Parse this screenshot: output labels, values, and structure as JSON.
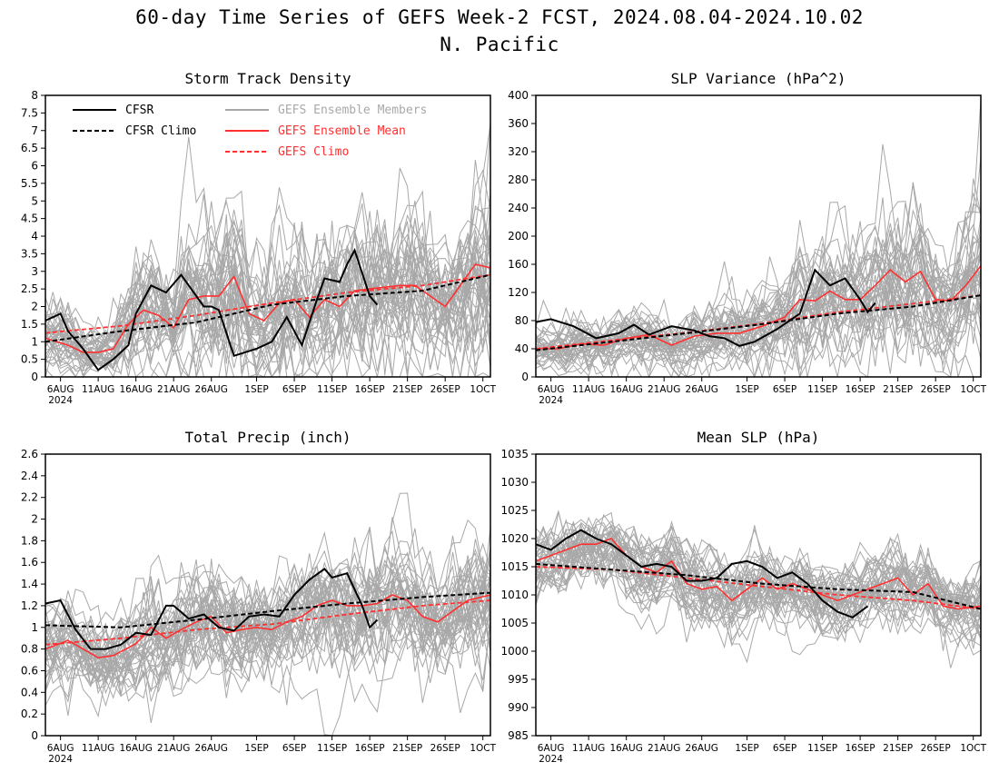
{
  "title": {
    "line1": "60-day Time Series of GEFS Week-2 FCST, 2024.08.04-2024.10.02",
    "line2": "N. Pacific"
  },
  "colors": {
    "cfsr": "#000000",
    "cfsr_climo": "#000000",
    "members": "#a8a8a8",
    "ens_mean": "#ff3030",
    "gefs_climo": "#ff3030"
  },
  "legend": {
    "cfsr": "CFSR",
    "cfsr_climo": "CFSR Climo",
    "members": "GEFS Ensemble Members",
    "ens_mean": "GEFS Ensemble Mean",
    "gefs_climo": "GEFS Climo"
  },
  "x_ticks": [
    "6AUG",
    "11AUG",
    "16AUG",
    "21AUG",
    "26AUG",
    "1SEP",
    "6SEP",
    "11SEP",
    "16SEP",
    "21SEP",
    "26SEP",
    "1OCT"
  ],
  "x_year": "2024",
  "chart_data": [
    {
      "type": "line",
      "title": "Storm Track Density",
      "x_start": "2024-08-04",
      "x_end": "2024-10-02",
      "ylim": [
        0,
        8
      ],
      "yticks": [
        0,
        0.5,
        1,
        1.5,
        2,
        2.5,
        3,
        3.5,
        4,
        4.5,
        5,
        5.5,
        6,
        6.5,
        7,
        7.5,
        8
      ],
      "ensemble_band": [
        0.2,
        1.6
      ],
      "series": [
        {
          "name": "CFSR",
          "x": [
            "2024-08-04",
            "2024-08-06",
            "2024-08-07",
            "2024-08-09",
            "2024-08-11",
            "2024-08-13",
            "2024-08-15",
            "2024-08-16",
            "2024-08-18",
            "2024-08-20",
            "2024-08-22",
            "2024-08-23",
            "2024-08-25",
            "2024-08-26",
            "2024-08-27",
            "2024-08-29",
            "2024-09-01",
            "2024-09-03",
            "2024-09-05",
            "2024-09-07",
            "2024-09-09",
            "2024-09-10",
            "2024-09-12",
            "2024-09-13",
            "2024-09-14",
            "2024-09-16",
            "2024-09-17"
          ],
          "y": [
            1.6,
            1.8,
            1.3,
            0.8,
            0.2,
            0.5,
            0.9,
            1.8,
            2.6,
            2.4,
            2.9,
            2.6,
            2.0,
            2.0,
            1.9,
            0.6,
            0.8,
            1.0,
            1.7,
            0.9,
            2.2,
            2.8,
            2.7,
            3.2,
            3.6,
            2.3,
            2.05
          ]
        },
        {
          "name": "CFSR Climo",
          "x": [
            "2024-08-04",
            "2024-08-14",
            "2024-08-24",
            "2024-09-03",
            "2024-09-13",
            "2024-09-23",
            "2024-10-02"
          ],
          "y": [
            1.0,
            1.3,
            1.55,
            2.05,
            2.3,
            2.45,
            2.9
          ]
        },
        {
          "name": "GEFS Ensemble Mean",
          "x": [
            "2024-08-04",
            "2024-08-07",
            "2024-08-09",
            "2024-08-11",
            "2024-08-13",
            "2024-08-15",
            "2024-08-17",
            "2024-08-19",
            "2024-08-21",
            "2024-08-23",
            "2024-08-25",
            "2024-08-27",
            "2024-08-29",
            "2024-08-31",
            "2024-09-02",
            "2024-09-04",
            "2024-09-06",
            "2024-09-08",
            "2024-09-10",
            "2024-09-12",
            "2024-09-14",
            "2024-09-16",
            "2024-09-18",
            "2024-09-20",
            "2024-09-22",
            "2024-09-24",
            "2024-09-26",
            "2024-09-28",
            "2024-09-30",
            "2024-10-02"
          ],
          "y": [
            1.1,
            0.9,
            0.7,
            0.7,
            0.8,
            1.5,
            1.9,
            1.75,
            1.4,
            2.2,
            2.3,
            2.3,
            2.85,
            1.8,
            1.6,
            2.1,
            2.2,
            1.7,
            2.2,
            2.0,
            2.45,
            2.5,
            2.55,
            2.6,
            2.6,
            2.3,
            2.0,
            2.6,
            3.2,
            3.1
          ]
        },
        {
          "name": "GEFS Climo",
          "x": [
            "2024-08-04",
            "2024-08-14",
            "2024-08-24",
            "2024-09-03",
            "2024-09-13",
            "2024-09-23",
            "2024-10-02"
          ],
          "y": [
            1.25,
            1.45,
            1.75,
            2.1,
            2.4,
            2.6,
            2.9
          ]
        }
      ]
    },
    {
      "type": "line",
      "title": "SLP Variance (hPa^2)",
      "x_start": "2024-08-04",
      "x_end": "2024-10-02",
      "ylim": [
        0,
        400
      ],
      "yticks": [
        0,
        40,
        80,
        120,
        160,
        200,
        240,
        280,
        320,
        360,
        400
      ],
      "ensemble_band": [
        0.25,
        1.3
      ],
      "series": [
        {
          "name": "CFSR",
          "x": [
            "2024-08-04",
            "2024-08-06",
            "2024-08-09",
            "2024-08-12",
            "2024-08-15",
            "2024-08-17",
            "2024-08-19",
            "2024-08-22",
            "2024-08-25",
            "2024-08-27",
            "2024-08-29",
            "2024-08-31",
            "2024-09-02",
            "2024-09-05",
            "2024-09-08",
            "2024-09-10",
            "2024-09-12",
            "2024-09-14",
            "2024-09-16",
            "2024-09-17",
            "2024-09-18"
          ],
          "y": [
            78,
            82,
            72,
            55,
            62,
            74,
            60,
            72,
            66,
            58,
            55,
            44,
            50,
            68,
            90,
            152,
            130,
            140,
            110,
            92,
            105
          ]
        },
        {
          "name": "CFSR Climo",
          "x": [
            "2024-08-04",
            "2024-08-14",
            "2024-08-24",
            "2024-09-03",
            "2024-09-13",
            "2024-09-23",
            "2024-10-02"
          ],
          "y": [
            38,
            50,
            62,
            75,
            90,
            100,
            116
          ]
        },
        {
          "name": "GEFS Ensemble Mean",
          "x": [
            "2024-08-04",
            "2024-08-07",
            "2024-08-10",
            "2024-08-13",
            "2024-08-16",
            "2024-08-19",
            "2024-08-22",
            "2024-08-25",
            "2024-08-28",
            "2024-08-31",
            "2024-09-03",
            "2024-09-06",
            "2024-09-08",
            "2024-09-10",
            "2024-09-12",
            "2024-09-14",
            "2024-09-16",
            "2024-09-18",
            "2024-09-20",
            "2024-09-22",
            "2024-09-24",
            "2024-09-26",
            "2024-09-28",
            "2024-09-30",
            "2024-10-02"
          ],
          "y": [
            40,
            40,
            47,
            45,
            55,
            60,
            45,
            58,
            62,
            62,
            72,
            85,
            110,
            108,
            122,
            110,
            110,
            130,
            152,
            135,
            150,
            110,
            108,
            130,
            158
          ]
        },
        {
          "name": "GEFS Climo",
          "x": [
            "2024-08-04",
            "2024-08-14",
            "2024-08-24",
            "2024-09-03",
            "2024-09-13",
            "2024-09-23",
            "2024-10-02"
          ],
          "y": [
            40,
            52,
            63,
            76,
            92,
            104,
            116
          ]
        }
      ]
    },
    {
      "type": "line",
      "title": "Total Precip (inch)",
      "x_start": "2024-08-04",
      "x_end": "2024-10-02",
      "ylim": [
        0,
        2.6
      ],
      "yticks": [
        0,
        0.2,
        0.4,
        0.6,
        0.8,
        1,
        1.2,
        1.4,
        1.6,
        1.8,
        2,
        2.2,
        2.4,
        2.6
      ],
      "ensemble_band": [
        0.4,
        0.85
      ],
      "series": [
        {
          "name": "CFSR",
          "x": [
            "2024-08-04",
            "2024-08-06",
            "2024-08-08",
            "2024-08-10",
            "2024-08-12",
            "2024-08-14",
            "2024-08-16",
            "2024-08-18",
            "2024-08-20",
            "2024-08-21",
            "2024-08-23",
            "2024-08-25",
            "2024-08-27",
            "2024-08-29",
            "2024-08-31",
            "2024-09-02",
            "2024-09-04",
            "2024-09-06",
            "2024-09-08",
            "2024-09-10",
            "2024-09-11",
            "2024-09-13",
            "2024-09-15",
            "2024-09-16",
            "2024-09-17"
          ],
          "y": [
            1.22,
            1.25,
            0.98,
            0.8,
            0.8,
            0.84,
            0.95,
            0.93,
            1.2,
            1.2,
            1.08,
            1.12,
            1.0,
            0.97,
            1.1,
            1.12,
            1.1,
            1.3,
            1.44,
            1.54,
            1.46,
            1.5,
            1.2,
            1.0,
            1.07
          ]
        },
        {
          "name": "CFSR Climo",
          "x": [
            "2024-08-04",
            "2024-08-14",
            "2024-08-24",
            "2024-09-03",
            "2024-09-13",
            "2024-09-23",
            "2024-10-02"
          ],
          "y": [
            1.02,
            1.0,
            1.07,
            1.15,
            1.22,
            1.28,
            1.32
          ]
        },
        {
          "name": "GEFS Ensemble Mean",
          "x": [
            "2024-08-04",
            "2024-08-07",
            "2024-08-09",
            "2024-08-11",
            "2024-08-13",
            "2024-08-16",
            "2024-08-18",
            "2024-08-20",
            "2024-08-22",
            "2024-08-24",
            "2024-08-26",
            "2024-08-28",
            "2024-08-30",
            "2024-09-01",
            "2024-09-03",
            "2024-09-05",
            "2024-09-07",
            "2024-09-09",
            "2024-09-11",
            "2024-09-13",
            "2024-09-15",
            "2024-09-17",
            "2024-09-19",
            "2024-09-21",
            "2024-09-23",
            "2024-09-25",
            "2024-09-27",
            "2024-09-29",
            "2024-10-02"
          ],
          "y": [
            0.8,
            0.88,
            0.8,
            0.72,
            0.74,
            0.85,
            1.0,
            0.9,
            0.98,
            1.05,
            1.1,
            0.95,
            0.98,
            1.0,
            0.98,
            1.05,
            1.1,
            1.2,
            1.25,
            1.2,
            1.2,
            1.22,
            1.3,
            1.25,
            1.1,
            1.05,
            1.15,
            1.25,
            1.3
          ]
        },
        {
          "name": "GEFS Climo",
          "x": [
            "2024-08-04",
            "2024-08-14",
            "2024-08-24",
            "2024-09-03",
            "2024-09-13",
            "2024-09-23",
            "2024-10-02"
          ],
          "y": [
            0.84,
            0.9,
            0.98,
            1.03,
            1.12,
            1.2,
            1.25
          ]
        }
      ]
    },
    {
      "type": "line",
      "title": "Mean SLP (hPa)",
      "x_start": "2024-08-04",
      "x_end": "2024-10-02",
      "ylim": [
        985,
        1035
      ],
      "yticks": [
        985,
        990,
        995,
        1000,
        1005,
        1010,
        1015,
        1020,
        1025,
        1030,
        1035
      ],
      "ensemble_band": [
        -8,
        8
      ],
      "series": [
        {
          "name": "CFSR",
          "x": [
            "2024-08-04",
            "2024-08-06",
            "2024-08-08",
            "2024-08-10",
            "2024-08-12",
            "2024-08-14",
            "2024-08-16",
            "2024-08-18",
            "2024-08-20",
            "2024-08-22",
            "2024-08-24",
            "2024-08-26",
            "2024-08-28",
            "2024-08-30",
            "2024-09-01",
            "2024-09-03",
            "2024-09-05",
            "2024-09-07",
            "2024-09-09",
            "2024-09-11",
            "2024-09-13",
            "2024-09-15",
            "2024-09-17"
          ],
          "y": [
            1019,
            1018,
            1020,
            1021.5,
            1020,
            1019,
            1017,
            1015,
            1015.5,
            1015,
            1012.5,
            1012.5,
            1013,
            1015.5,
            1016,
            1015,
            1013,
            1014,
            1012,
            1009,
            1007,
            1006,
            1008
          ]
        },
        {
          "name": "CFSR Climo",
          "x": [
            "2024-08-04",
            "2024-08-14",
            "2024-08-24",
            "2024-09-03",
            "2024-09-13",
            "2024-09-23",
            "2024-10-02"
          ],
          "y": [
            1015.5,
            1014.5,
            1013.5,
            1012,
            1011,
            1010.5,
            1007.5
          ]
        },
        {
          "name": "GEFS Ensemble Mean",
          "x": [
            "2024-08-04",
            "2024-08-06",
            "2024-08-08",
            "2024-08-10",
            "2024-08-12",
            "2024-08-14",
            "2024-08-16",
            "2024-08-18",
            "2024-08-20",
            "2024-08-22",
            "2024-08-24",
            "2024-08-26",
            "2024-08-28",
            "2024-08-30",
            "2024-09-01",
            "2024-09-03",
            "2024-09-05",
            "2024-09-07",
            "2024-09-09",
            "2024-09-11",
            "2024-09-13",
            "2024-09-15",
            "2024-09-17",
            "2024-09-19",
            "2024-09-21",
            "2024-09-23",
            "2024-09-25",
            "2024-09-27",
            "2024-09-29",
            "2024-10-02"
          ],
          "y": [
            1016,
            1017,
            1018,
            1019,
            1019,
            1020,
            1017,
            1015,
            1014,
            1016,
            1012,
            1011,
            1011.5,
            1009,
            1011,
            1013,
            1011,
            1012,
            1011,
            1010,
            1009,
            1010,
            1011,
            1012,
            1013,
            1010,
            1012,
            1008,
            1007.5,
            1008
          ]
        },
        {
          "name": "GEFS Climo",
          "x": [
            "2024-08-04",
            "2024-08-14",
            "2024-08-24",
            "2024-09-03",
            "2024-09-13",
            "2024-09-23",
            "2024-10-02"
          ],
          "y": [
            1015,
            1014.5,
            1013,
            1011.5,
            1010,
            1009,
            1007.5
          ]
        }
      ]
    }
  ]
}
